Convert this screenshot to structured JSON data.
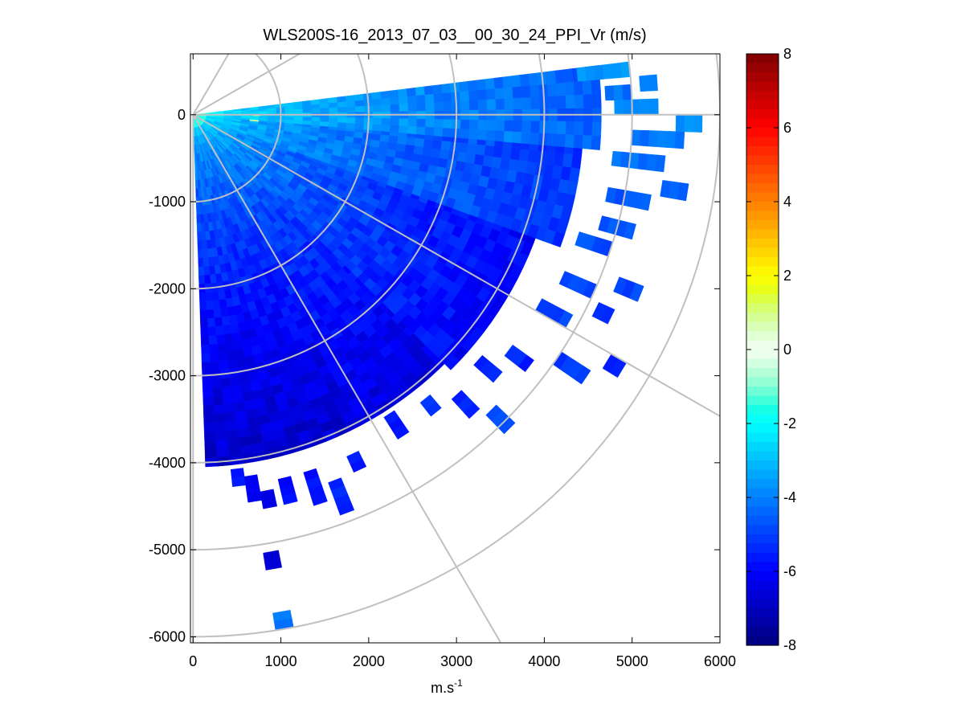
{
  "chart_data": {
    "type": "heatmap",
    "subtype": "ppi-polar-scan",
    "title": "WLS200S-16_2013_07_03__00_30_24_PPI_Vr (m/s)",
    "xlabel": "m.s",
    "xlabel_superscript": "-1",
    "ylabel": "",
    "xlim": [
      -30,
      6000
    ],
    "ylim": [
      -6070,
      700
    ],
    "xticks": [
      0,
      1000,
      2000,
      3000,
      4000,
      5000,
      6000
    ],
    "xtick_labels": [
      "0",
      "1000",
      "2000",
      "3000",
      "4000",
      "5000",
      "6000"
    ],
    "yticks": [
      0,
      -1000,
      -2000,
      -3000,
      -4000,
      -5000,
      -6000
    ],
    "ytick_labels": [
      "0",
      "-1000",
      "-2000",
      "-3000",
      "-4000",
      "-5000",
      "-6000"
    ],
    "grid": {
      "range_rings": [
        1000,
        2000,
        3000,
        4000,
        5000,
        6000
      ],
      "spokes_deg": [
        -90,
        -60,
        -30,
        0,
        30,
        60
      ]
    },
    "colorbar": {
      "label": "",
      "min": -8,
      "max": 8,
      "ticks": [
        8,
        6,
        4,
        2,
        0,
        -2,
        -4,
        -6,
        -8
      ],
      "tick_labels": [
        "8",
        "6",
        "4",
        "2",
        "0",
        "-2",
        "-4",
        "-6",
        "-8"
      ],
      "colormap": "jet-with-white-center"
    },
    "scan": {
      "azimuth_start_deg": -88,
      "azimuth_end_deg": 10,
      "azimuth_step_deg": 2,
      "gate_start_m": 50,
      "gate_step_m": 100,
      "max_range_m": 6000,
      "dense_regions": [
        {
          "az_range_deg": [
            -88,
            -84
          ],
          "max_range_m": 4000,
          "vr_near_mps": -1.5,
          "vr_far_mps": -6.8
        },
        {
          "az_range_deg": [
            -84,
            -62
          ],
          "max_range_m": 4050,
          "vr_near_mps": -1.5,
          "vr_far_mps": -6.8
        },
        {
          "az_range_deg": [
            -62,
            -45
          ],
          "max_range_m": 4050,
          "vr_near_mps": -1.5,
          "vr_far_mps": -6.5
        },
        {
          "az_range_deg": [
            -45,
            -20
          ],
          "max_range_m": 4100,
          "vr_near_mps": -1.5,
          "vr_far_mps": -6.0
        },
        {
          "az_range_deg": [
            -20,
            -5
          ],
          "max_range_m": 4400,
          "vr_near_mps": -1.5,
          "vr_far_mps": -5.2
        },
        {
          "az_range_deg": [
            -5,
            6
          ],
          "max_range_m": 4600,
          "vr_near_mps": -1.2,
          "vr_far_mps": -4.5
        }
      ],
      "sparse_patches": [
        {
          "az_deg": -84,
          "range_m": [
            4100,
            4300
          ],
          "vr_mps": -5.5
        },
        {
          "az_deg": -82,
          "range_m": [
            4200,
            4500
          ],
          "vr_mps": -6.0
        },
        {
          "az_deg": -80,
          "range_m": [
            4400,
            4600
          ],
          "vr_mps": -6.2
        },
        {
          "az_deg": -77,
          "range_m": [
            4300,
            4600
          ],
          "vr_mps": -6.0
        },
        {
          "az_deg": -73,
          "range_m": [
            4300,
            4700
          ],
          "vr_mps": -5.8
        },
        {
          "az_deg": -70,
          "range_m": [
            4500,
            4900
          ],
          "vr_mps": -5.5
        },
        {
          "az_deg": -66,
          "range_m": [
            4300,
            4500
          ],
          "vr_mps": -5.6
        },
        {
          "az_deg": -81,
          "range_m": [
            5100,
            5300
          ],
          "vr_mps": -6.5
        },
        {
          "az_deg": -81,
          "range_m": [
            5800,
            6000
          ],
          "vr_mps": -4.0
        },
        {
          "az_deg": -58,
          "range_m": [
            4100,
            4400
          ],
          "vr_mps": -5.6
        },
        {
          "az_deg": -52,
          "range_m": [
            4200,
            4400
          ],
          "vr_mps": -5.2
        },
        {
          "az_deg": -48,
          "range_m": [
            4400,
            4700
          ],
          "vr_mps": -5.4
        },
        {
          "az_deg": -46,
          "range_m": [
            4800,
            5100
          ],
          "vr_mps": -5.0
        },
        {
          "az_deg": -42,
          "range_m": [
            4300,
            4600
          ],
          "vr_mps": -5.3
        },
        {
          "az_deg": -38,
          "range_m": [
            4500,
            4800
          ],
          "vr_mps": -5.5
        },
        {
          "az_deg": -35,
          "range_m": [
            5000,
            5400
          ],
          "vr_mps": -5.2
        },
        {
          "az_deg": -32,
          "range_m": [
            5500,
            5700
          ],
          "vr_mps": -5.4
        },
        {
          "az_deg": -30,
          "range_m": [
            4500,
            4900
          ],
          "vr_mps": -5.0
        },
        {
          "az_deg": -27,
          "range_m": [
            5100,
            5300
          ],
          "vr_mps": -5.1
        },
        {
          "az_deg": -25,
          "range_m": [
            4600,
            5000
          ],
          "vr_mps": -4.8
        },
        {
          "az_deg": -23,
          "range_m": [
            5200,
            5500
          ],
          "vr_mps": -5.0
        },
        {
          "az_deg": -19,
          "range_m": [
            4600,
            5000
          ],
          "vr_mps": -4.8
        },
        {
          "az_deg": -16,
          "range_m": [
            4800,
            5200
          ],
          "vr_mps": -4.6
        },
        {
          "az_deg": -12,
          "range_m": [
            4800,
            5300
          ],
          "vr_mps": -4.6
        },
        {
          "az_deg": -10,
          "range_m": [
            5400,
            5700
          ],
          "vr_mps": -4.4
        },
        {
          "az_deg": -7,
          "range_m": [
            4800,
            5400
          ],
          "vr_mps": -4.3
        },
        {
          "az_deg": -4,
          "range_m": [
            5000,
            5600
          ],
          "vr_mps": -4.2
        },
        {
          "az_deg": -2,
          "range_m": [
            5500,
            5800
          ],
          "vr_mps": -3.6
        },
        {
          "az_deg": 0,
          "range_m": [
            4800,
            5300
          ],
          "vr_mps": -4.0
        },
        {
          "az_deg": 2,
          "range_m": [
            4700,
            5000
          ],
          "vr_mps": -4.2
        },
        {
          "az_deg": 3,
          "range_m": [
            5100,
            5300
          ],
          "vr_mps": -3.8
        },
        {
          "az_deg": 5,
          "range_m": [
            4400,
            5000
          ],
          "vr_mps": -3.6
        }
      ],
      "positive_patches": [
        {
          "az_deg": -6,
          "range_m": [
            650,
            750
          ],
          "vr_mps": 0.8
        },
        {
          "az_deg": -1,
          "range_m": [
            680,
            760
          ],
          "vr_mps": 1.0
        }
      ]
    }
  }
}
